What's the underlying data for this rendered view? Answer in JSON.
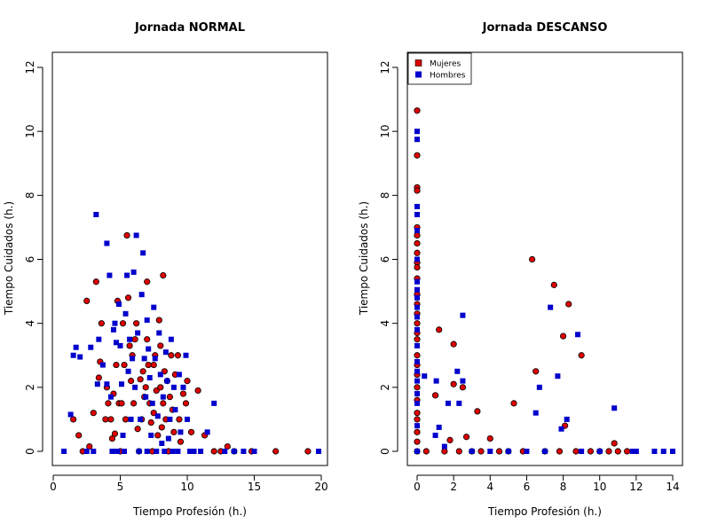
{
  "colors": {
    "mujeres": "#dd0000",
    "hombres": "#0000cc",
    "stroke": "#000000"
  },
  "chart_data": [
    {
      "type": "scatter",
      "title": "Jornada NORMAL",
      "xlabel": "Tiempo Profesión (h.)",
      "ylabel": "Tiempo Cuidados (h.)",
      "xlim": [
        0,
        20
      ],
      "ylim": [
        0,
        12
      ],
      "xticks": [
        0,
        5,
        10,
        15,
        20
      ],
      "yticks": [
        0,
        2,
        4,
        6,
        8,
        10,
        12
      ],
      "legend": null,
      "series": [
        {
          "name": "Mujeres",
          "marker": "circle",
          "points": [
            [
              1.5,
              1.0
            ],
            [
              1.9,
              0.5
            ],
            [
              2.2,
              0.0
            ],
            [
              2.5,
              4.7
            ],
            [
              2.7,
              0.15
            ],
            [
              3.0,
              1.2
            ],
            [
              3.2,
              5.3
            ],
            [
              3.4,
              2.3
            ],
            [
              3.5,
              2.8
            ],
            [
              3.6,
              4.0
            ],
            [
              3.9,
              1.0
            ],
            [
              4.0,
              2.0
            ],
            [
              4.1,
              1.5
            ],
            [
              4.3,
              1.0
            ],
            [
              4.4,
              0.4
            ],
            [
              4.5,
              1.8
            ],
            [
              4.6,
              0.55
            ],
            [
              4.7,
              2.7
            ],
            [
              4.8,
              4.7
            ],
            [
              4.9,
              1.5
            ],
            [
              5.0,
              0.0
            ],
            [
              5.1,
              1.5
            ],
            [
              5.2,
              4.0
            ],
            [
              5.3,
              2.7
            ],
            [
              5.4,
              1.0
            ],
            [
              5.5,
              6.75
            ],
            [
              5.6,
              4.8
            ],
            [
              5.7,
              3.3
            ],
            [
              5.8,
              2.2
            ],
            [
              5.9,
              3.0
            ],
            [
              6.0,
              1.5
            ],
            [
              6.1,
              3.5
            ],
            [
              6.2,
              4.0
            ],
            [
              6.3,
              0.7
            ],
            [
              6.4,
              0.0
            ],
            [
              6.5,
              2.25
            ],
            [
              6.6,
              1.0
            ],
            [
              6.7,
              2.5
            ],
            [
              6.8,
              1.7
            ],
            [
              6.9,
              2.0
            ],
            [
              7.0,
              5.3
            ],
            [
              7.0,
              3.5
            ],
            [
              7.1,
              2.7
            ],
            [
              7.2,
              1.5
            ],
            [
              7.3,
              0.9
            ],
            [
              7.4,
              0.0
            ],
            [
              7.5,
              2.7
            ],
            [
              7.5,
              1.2
            ],
            [
              7.6,
              3.0
            ],
            [
              7.7,
              1.9
            ],
            [
              7.8,
              0.5
            ],
            [
              7.9,
              4.1
            ],
            [
              8.0,
              3.3
            ],
            [
              8.0,
              2.0
            ],
            [
              8.1,
              0.75
            ],
            [
              8.2,
              1.5
            ],
            [
              8.2,
              5.5
            ],
            [
              8.3,
              2.5
            ],
            [
              8.4,
              1.0
            ],
            [
              8.5,
              2.2
            ],
            [
              8.6,
              0.0
            ],
            [
              8.7,
              1.7
            ],
            [
              8.8,
              3.0
            ],
            [
              8.9,
              1.3
            ],
            [
              9.0,
              0.6
            ],
            [
              9.1,
              2.4
            ],
            [
              9.3,
              3.0
            ],
            [
              9.4,
              1.0
            ],
            [
              9.5,
              0.3
            ],
            [
              9.7,
              1.8
            ],
            [
              9.9,
              1.5
            ],
            [
              10.0,
              2.2
            ],
            [
              10.3,
              0.6
            ],
            [
              10.8,
              1.9
            ],
            [
              11.3,
              0.5
            ],
            [
              12.0,
              0.0
            ],
            [
              12.5,
              0.0
            ],
            [
              13.0,
              0.15
            ],
            [
              13.5,
              0.0
            ],
            [
              14.8,
              0.0
            ],
            [
              16.6,
              0.0
            ],
            [
              19.0,
              0.0
            ]
          ]
        },
        {
          "name": "Hombres",
          "marker": "square",
          "points": [
            [
              0.8,
              0.0
            ],
            [
              1.3,
              1.15
            ],
            [
              1.5,
              3.0
            ],
            [
              1.7,
              3.25
            ],
            [
              2.0,
              2.95
            ],
            [
              2.5,
              0.0
            ],
            [
              2.8,
              3.25
            ],
            [
              3.0,
              0.0
            ],
            [
              3.2,
              7.4
            ],
            [
              3.3,
              2.1
            ],
            [
              3.4,
              3.5
            ],
            [
              3.7,
              2.7
            ],
            [
              4.0,
              6.5
            ],
            [
              4.0,
              2.1
            ],
            [
              4.2,
              5.5
            ],
            [
              4.3,
              1.7
            ],
            [
              4.4,
              0.0
            ],
            [
              4.5,
              3.8
            ],
            [
              4.6,
              4.0
            ],
            [
              4.7,
              3.4
            ],
            [
              4.8,
              0.0
            ],
            [
              4.9,
              4.6
            ],
            [
              5.0,
              3.3
            ],
            [
              5.1,
              2.1
            ],
            [
              5.2,
              0.5
            ],
            [
              5.3,
              0.0
            ],
            [
              5.4,
              4.3
            ],
            [
              5.5,
              5.5
            ],
            [
              5.6,
              2.5
            ],
            [
              5.7,
              3.5
            ],
            [
              5.8,
              1.0
            ],
            [
              5.9,
              2.9
            ],
            [
              6.0,
              5.6
            ],
            [
              6.1,
              2.0
            ],
            [
              6.2,
              6.75
            ],
            [
              6.3,
              3.7
            ],
            [
              6.4,
              0.0
            ],
            [
              6.5,
              1.0
            ],
            [
              6.6,
              4.9
            ],
            [
              6.7,
              6.2
            ],
            [
              6.8,
              2.9
            ],
            [
              6.9,
              1.7
            ],
            [
              7.0,
              4.1
            ],
            [
              7.0,
              0.0
            ],
            [
              7.1,
              3.2
            ],
            [
              7.2,
              2.3
            ],
            [
              7.3,
              0.5
            ],
            [
              7.4,
              1.5
            ],
            [
              7.5,
              4.5
            ],
            [
              7.6,
              2.9
            ],
            [
              7.7,
              0.0
            ],
            [
              7.8,
              1.1
            ],
            [
              7.9,
              3.7
            ],
            [
              8.0,
              2.4
            ],
            [
              8.1,
              0.25
            ],
            [
              8.2,
              1.7
            ],
            [
              8.3,
              0.0
            ],
            [
              8.4,
              3.1
            ],
            [
              8.5,
              2.2
            ],
            [
              8.6,
              0.4
            ],
            [
              8.7,
              1.0
            ],
            [
              8.8,
              3.5
            ],
            [
              8.9,
              0.0
            ],
            [
              9.0,
              2.0
            ],
            [
              9.1,
              1.3
            ],
            [
              9.3,
              0.0
            ],
            [
              9.4,
              2.4
            ],
            [
              9.5,
              0.6
            ],
            [
              9.7,
              2.0
            ],
            [
              9.9,
              3.0
            ],
            [
              10.0,
              1.0
            ],
            [
              10.2,
              0.0
            ],
            [
              10.5,
              0.0
            ],
            [
              11.0,
              0.0
            ],
            [
              11.5,
              0.6
            ],
            [
              12.0,
              1.5
            ],
            [
              12.8,
              0.0
            ],
            [
              13.5,
              0.0
            ],
            [
              14.2,
              0.0
            ],
            [
              15.0,
              0.0
            ],
            [
              19.8,
              0.0
            ]
          ]
        }
      ]
    },
    {
      "type": "scatter",
      "title": "Jornada DESCANSO",
      "xlabel": "Tiempo Profesión (h.)",
      "ylabel": "Tiempo Cuidados (h.)",
      "xlim": [
        0,
        14
      ],
      "ylim": [
        0,
        12
      ],
      "xticks": [
        0,
        2,
        4,
        6,
        8,
        10,
        12,
        14
      ],
      "yticks": [
        0,
        2,
        4,
        6,
        8,
        10,
        12
      ],
      "legend": "top-left",
      "series": [
        {
          "name": "Mujeres",
          "marker": "circle",
          "points": [
            [
              0,
              10.65
            ],
            [
              0,
              9.25
            ],
            [
              0,
              8.25
            ],
            [
              0,
              8.15
            ],
            [
              0,
              7.0
            ],
            [
              0,
              6.75
            ],
            [
              0,
              6.5
            ],
            [
              0,
              6.2
            ],
            [
              0,
              5.9
            ],
            [
              0,
              5.75
            ],
            [
              0,
              5.4
            ],
            [
              0,
              4.9
            ],
            [
              0,
              4.6
            ],
            [
              0,
              4.3
            ],
            [
              0,
              4.0
            ],
            [
              0,
              3.7
            ],
            [
              0,
              3.5
            ],
            [
              0,
              3.0
            ],
            [
              0,
              2.7
            ],
            [
              0,
              2.4
            ],
            [
              0,
              2.0
            ],
            [
              0,
              1.6
            ],
            [
              0,
              1.2
            ],
            [
              0,
              1.0
            ],
            [
              0,
              0.6
            ],
            [
              0,
              0.3
            ],
            [
              0,
              0.0
            ],
            [
              0.5,
              0.0
            ],
            [
              1.0,
              1.75
            ],
            [
              1.2,
              3.8
            ],
            [
              1.5,
              0.0
            ],
            [
              1.8,
              0.35
            ],
            [
              2.0,
              2.1
            ],
            [
              2.0,
              3.35
            ],
            [
              2.3,
              0.0
            ],
            [
              2.5,
              2.0
            ],
            [
              2.7,
              0.45
            ],
            [
              3.0,
              0.0
            ],
            [
              3.3,
              1.25
            ],
            [
              3.5,
              0.0
            ],
            [
              4.0,
              0.4
            ],
            [
              4.5,
              0.0
            ],
            [
              5.0,
              0.0
            ],
            [
              5.3,
              1.5
            ],
            [
              5.8,
              0.0
            ],
            [
              6.3,
              6.0
            ],
            [
              6.5,
              2.5
            ],
            [
              7.0,
              0.0
            ],
            [
              7.5,
              5.2
            ],
            [
              7.8,
              0.0
            ],
            [
              8.0,
              3.6
            ],
            [
              8.1,
              0.8
            ],
            [
              8.3,
              4.6
            ],
            [
              8.7,
              0.0
            ],
            [
              9.0,
              3.0
            ],
            [
              9.5,
              0.0
            ],
            [
              10.0,
              0.0
            ],
            [
              10.5,
              0.0
            ],
            [
              10.8,
              0.25
            ],
            [
              11.0,
              0.0
            ],
            [
              11.5,
              0.0
            ]
          ]
        },
        {
          "name": "Hombres",
          "marker": "square",
          "points": [
            [
              0,
              10.0
            ],
            [
              0,
              9.75
            ],
            [
              0,
              7.65
            ],
            [
              0,
              7.4
            ],
            [
              0,
              6.9
            ],
            [
              0,
              6.0
            ],
            [
              0,
              5.3
            ],
            [
              0,
              5.05
            ],
            [
              0,
              4.8
            ],
            [
              0,
              4.5
            ],
            [
              0,
              4.2
            ],
            [
              0,
              3.8
            ],
            [
              0,
              3.3
            ],
            [
              0,
              2.8
            ],
            [
              0,
              2.5
            ],
            [
              0,
              2.2
            ],
            [
              0,
              1.8
            ],
            [
              0,
              1.5
            ],
            [
              0,
              0.8
            ],
            [
              0,
              0.0
            ],
            [
              0.4,
              2.35
            ],
            [
              1.0,
              0.5
            ],
            [
              1.05,
              2.2
            ],
            [
              1.2,
              0.75
            ],
            [
              1.5,
              0.15
            ],
            [
              1.7,
              1.5
            ],
            [
              2.2,
              2.5
            ],
            [
              2.3,
              1.5
            ],
            [
              2.5,
              4.25
            ],
            [
              2.5,
              2.2
            ],
            [
              3.0,
              0.0
            ],
            [
              4.0,
              0.0
            ],
            [
              5.0,
              0.0
            ],
            [
              6.0,
              0.0
            ],
            [
              6.5,
              1.2
            ],
            [
              6.7,
              2.0
            ],
            [
              7.0,
              0.0
            ],
            [
              7.3,
              4.5
            ],
            [
              7.7,
              2.35
            ],
            [
              7.9,
              0.7
            ],
            [
              8.2,
              1.0
            ],
            [
              8.8,
              3.65
            ],
            [
              9.0,
              0.0
            ],
            [
              10.0,
              0.0
            ],
            [
              10.8,
              1.35
            ],
            [
              11.8,
              0.0
            ],
            [
              12.0,
              0.0
            ],
            [
              13.0,
              0.0
            ],
            [
              13.5,
              0.0
            ],
            [
              14.0,
              0.0
            ]
          ]
        }
      ]
    }
  ]
}
